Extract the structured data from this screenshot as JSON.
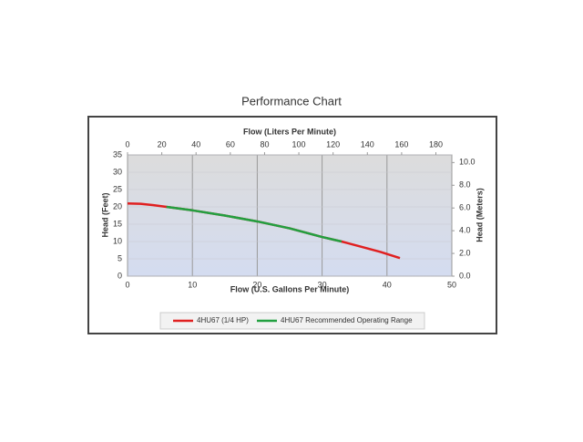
{
  "chart_data": {
    "type": "line",
    "title": "Performance Chart",
    "xlabel": "Flow (U.S. Gallons Per Minute)",
    "ylabel": "Head (Feet)",
    "x2label": "Flow (Liters Per Minute)",
    "y2label": "Head (Meters)",
    "xlim": [
      0,
      50
    ],
    "xticks": [
      0,
      10,
      20,
      30,
      40,
      50
    ],
    "ylim": [
      0,
      35
    ],
    "yticks": [
      0,
      5,
      10,
      15,
      20,
      25,
      30,
      35
    ],
    "x2lim": [
      0,
      189.3
    ],
    "x2ticks": [
      0,
      20,
      40,
      60,
      80,
      100,
      120,
      140,
      160,
      180
    ],
    "y2lim": [
      0,
      10.67
    ],
    "y2ticks": [
      {
        "value": 0,
        "label": "0.0"
      },
      {
        "value": 2,
        "label": "2.0"
      },
      {
        "value": 4,
        "label": "4.0"
      },
      {
        "value": 6,
        "label": "6.0"
      },
      {
        "value": 8,
        "label": "8.0"
      },
      {
        "value": 10,
        "label": "10.0"
      }
    ],
    "grid": true,
    "series": [
      {
        "name": "4HU67 (1/4 HP)",
        "color": "#e02020",
        "x": [
          0,
          2,
          4,
          6,
          10,
          15,
          20,
          25,
          30,
          33,
          36,
          39,
          42
        ],
        "values": [
          21,
          20.9,
          20.5,
          20,
          19,
          17.5,
          15.8,
          13.8,
          11.3,
          10,
          8.5,
          7,
          5.2
        ]
      },
      {
        "name": "4HU67 Recommended Operating Range",
        "color": "#22a040",
        "x": [
          6,
          10,
          15,
          20,
          25,
          30,
          33
        ],
        "values": [
          20,
          19,
          17.5,
          15.8,
          13.8,
          11.3,
          10
        ]
      }
    ]
  }
}
